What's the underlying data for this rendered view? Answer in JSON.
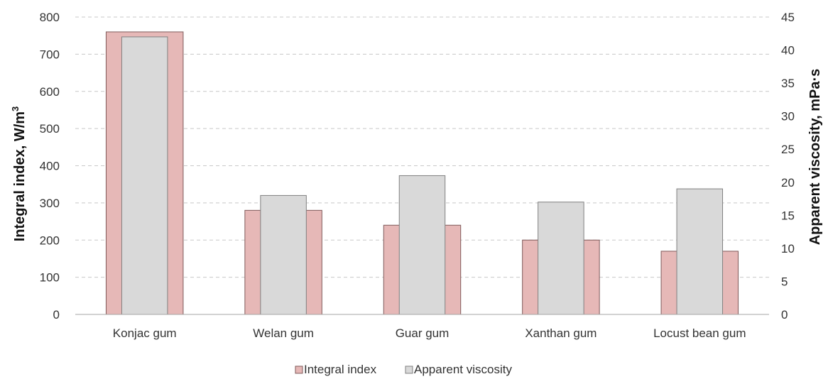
{
  "chart_data": {
    "type": "bar",
    "categories": [
      "Konjac gum",
      "Welan gum",
      "Guar gum",
      "Xanthan gum",
      "Locust bean gum"
    ],
    "series": [
      {
        "name": "Integral index",
        "axis": "left",
        "values": [
          760,
          280,
          240,
          200,
          170
        ],
        "color": "#e6b8b7",
        "stroke": "#7f5a5a"
      },
      {
        "name": "Apparent viscosity",
        "axis": "right",
        "values": [
          42,
          18,
          21,
          17,
          19
        ],
        "color": "#d9d9d9",
        "stroke": "#808080"
      }
    ],
    "y_left": {
      "label_main": "Integral index,  W/m",
      "label_sup": "3",
      "ylim": [
        0,
        800
      ],
      "ticks": [
        "0",
        "100",
        "200",
        "300",
        "400",
        "500",
        "600",
        "700",
        "800"
      ]
    },
    "y_right": {
      "label": "Apparent viscosity,  mPa·s",
      "ylim": [
        0,
        45
      ],
      "ticks": [
        "0",
        "5",
        "10",
        "15",
        "20",
        "25",
        "30",
        "35",
        "40",
        "45"
      ]
    },
    "grid": true,
    "legend_position": "bottom",
    "legend": [
      "Integral index",
      "Apparent viscosity"
    ]
  }
}
